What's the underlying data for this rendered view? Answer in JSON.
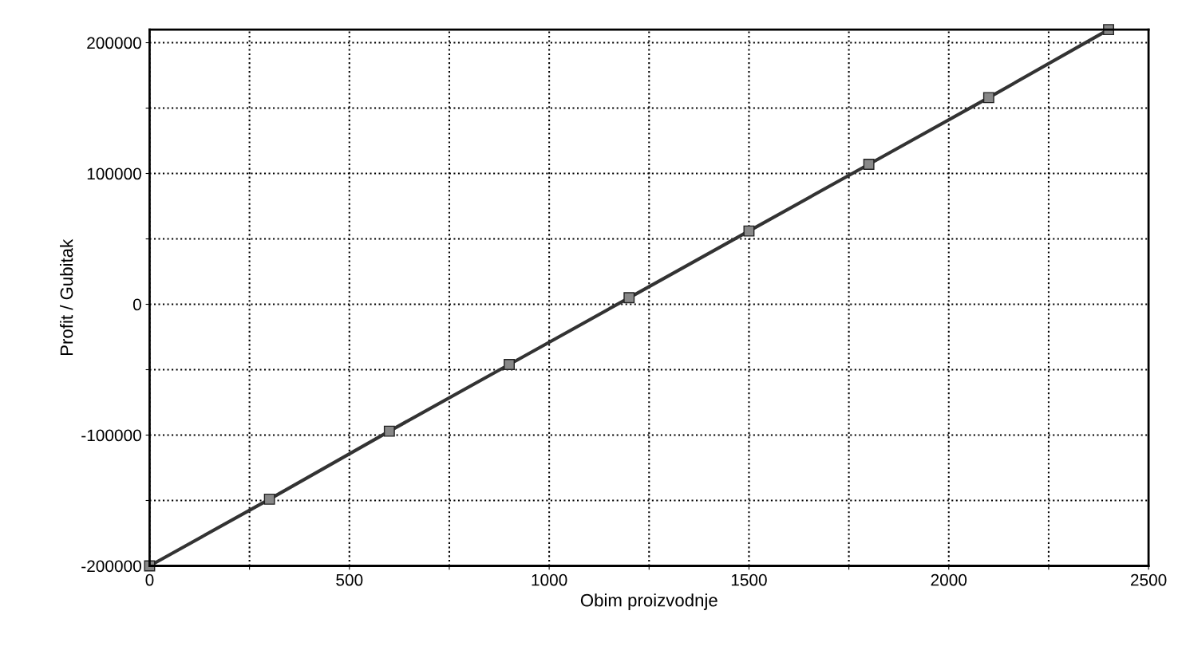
{
  "chart_data": {
    "type": "line",
    "xlabel": "Obim proizvodnje",
    "ylabel": "Profit / Gubitak",
    "x": [
      0,
      300,
      600,
      900,
      1200,
      1500,
      1800,
      2100,
      2400
    ],
    "series": [
      {
        "color": "#333333",
        "values": [
          -200000,
          -149000,
          -97000,
          -46000,
          5000,
          56000,
          107000,
          158000,
          210000
        ]
      }
    ],
    "xlim": [
      0,
      2500
    ],
    "xticks": [
      0,
      {
        "value": 250,
        "label": null
      },
      500,
      {
        "value": 750,
        "label": null
      },
      1000,
      {
        "value": 1250,
        "label": null
      },
      1500,
      {
        "value": 1750,
        "label": null
      },
      2000,
      {
        "value": 2250,
        "label": null
      },
      2500
    ],
    "ylim": [
      -200000,
      210000
    ],
    "yticks": [
      -200000,
      {
        "value": -150000,
        "label": null
      },
      -100000,
      {
        "value": -50000,
        "label": null
      },
      0,
      {
        "value": 50000,
        "label": null
      },
      100000,
      {
        "value": 150000,
        "label": null
      },
      200000
    ],
    "grid": true,
    "marker": "square",
    "line_style": "solid"
  }
}
